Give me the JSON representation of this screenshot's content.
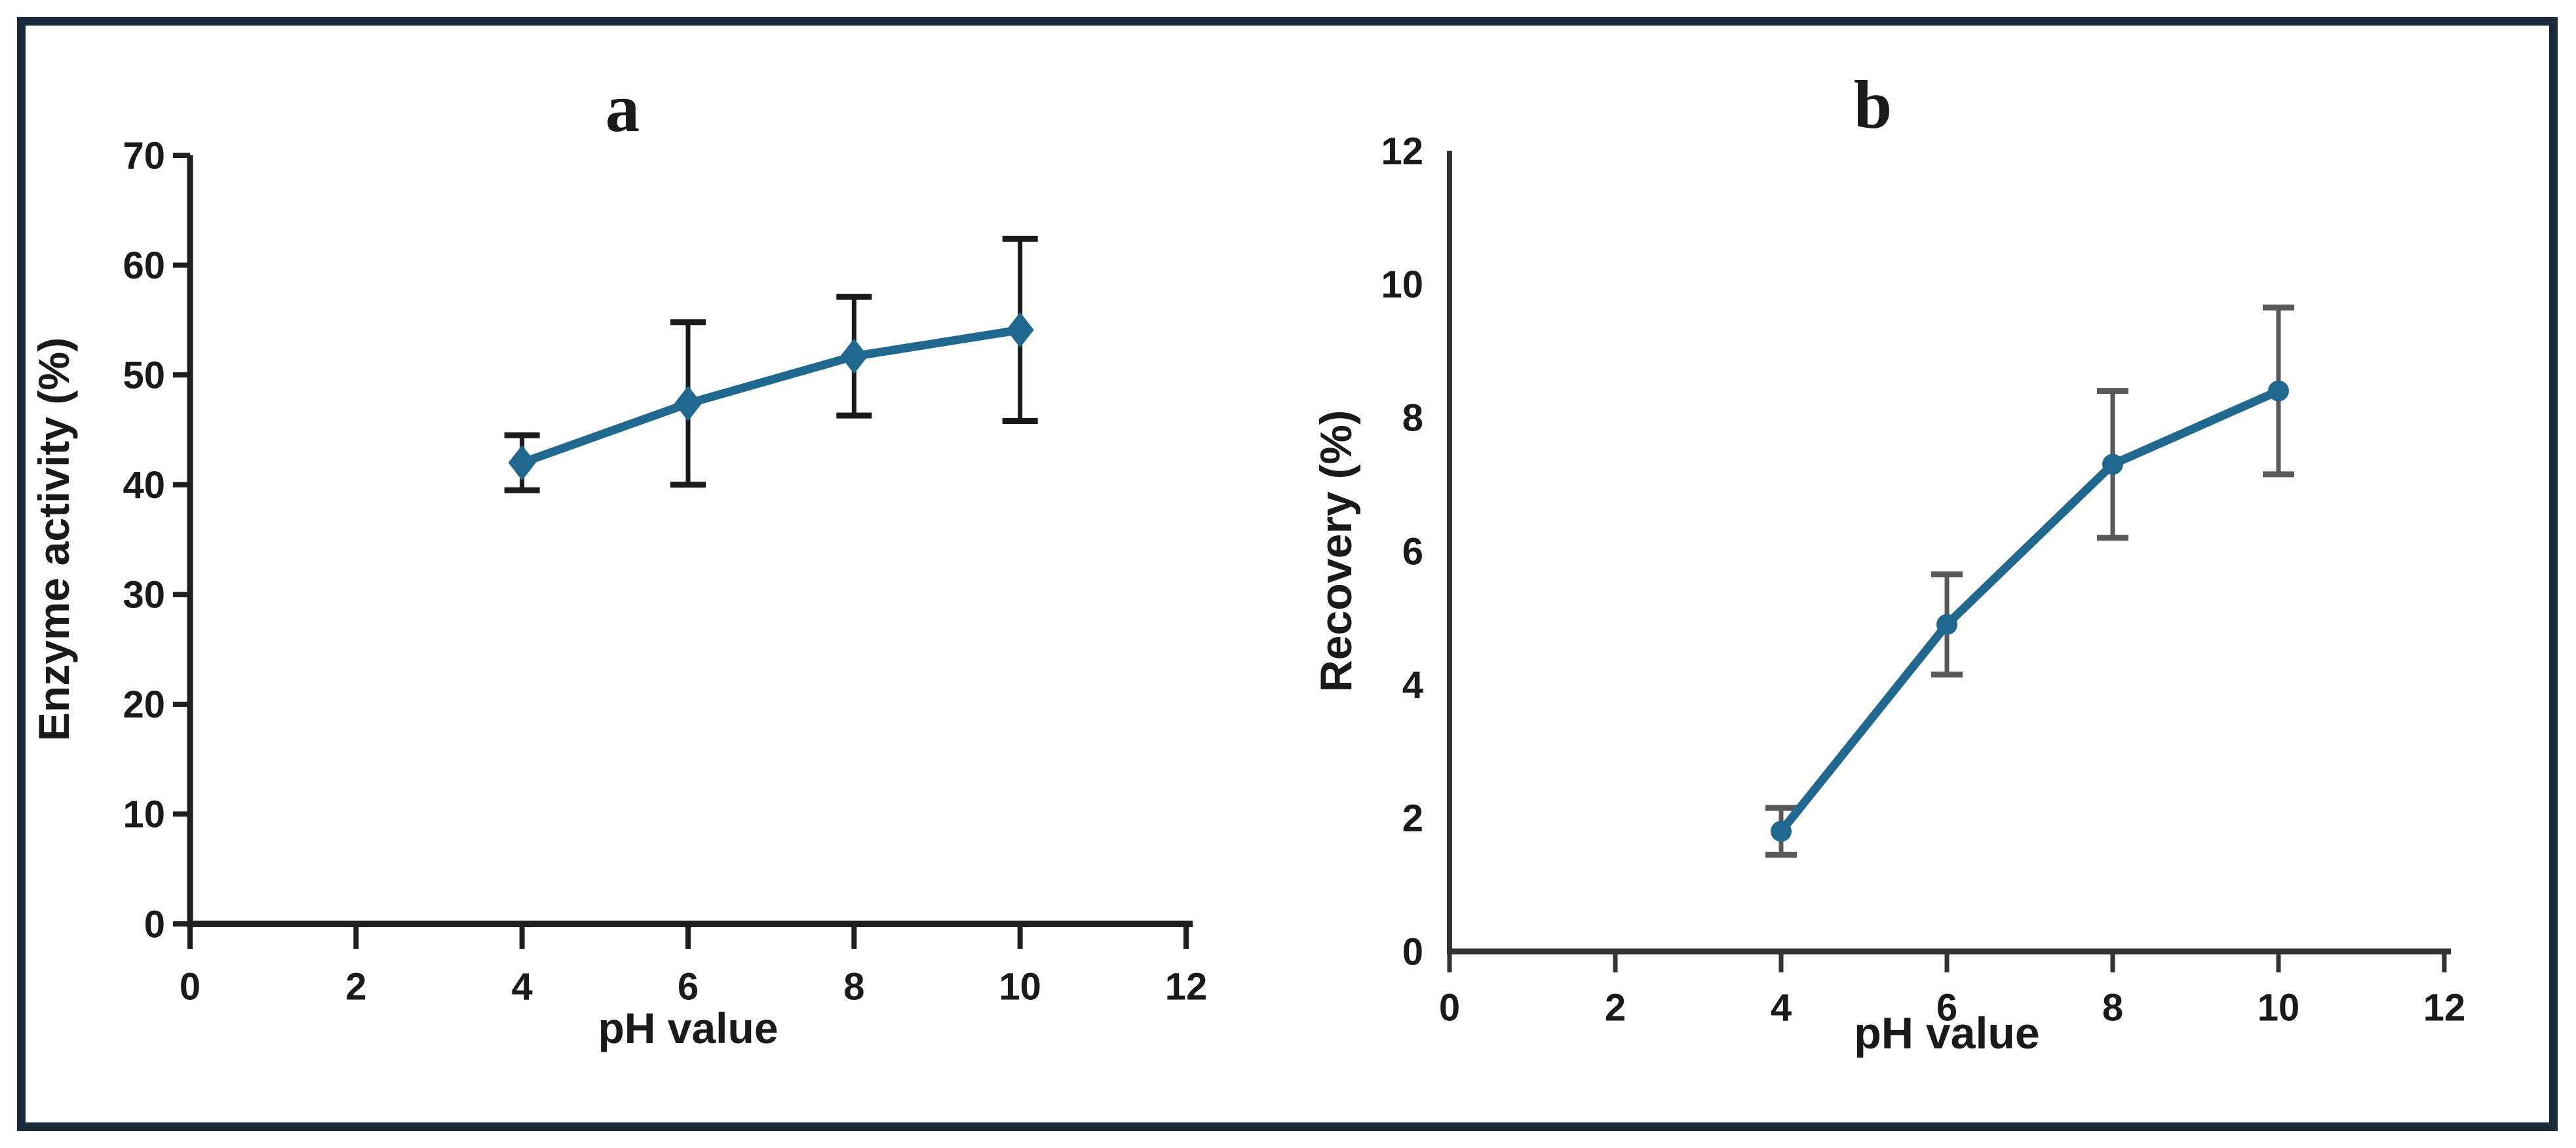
{
  "figure": {
    "background": "#ffffff",
    "border_color": "#1b2b3e"
  },
  "chart_data": [
    {
      "id": "a",
      "type": "line",
      "title": "a",
      "xlabel": "pH value",
      "ylabel": "Enzyme activity (%)",
      "xlim": [
        0,
        12
      ],
      "ylim": [
        0,
        70
      ],
      "xticks": [
        0,
        2,
        4,
        6,
        8,
        10,
        12
      ],
      "yticks": [
        0,
        10,
        20,
        30,
        40,
        50,
        60,
        70
      ],
      "x": [
        4,
        6,
        8,
        10
      ],
      "values": [
        42,
        47.4,
        51.7,
        54.1
      ],
      "errors": [
        2.5,
        7.4,
        5.4,
        8.3
      ],
      "marker": "diamond",
      "line_color": "#21688F",
      "error_color": "#1a1a1a",
      "grid": false,
      "legend": "none"
    },
    {
      "id": "b",
      "type": "line",
      "title": "b",
      "xlabel": "pH value",
      "ylabel": "Recovery (%)",
      "xlim": [
        0,
        12
      ],
      "ylim": [
        0,
        12
      ],
      "xticks": [
        0,
        2,
        4,
        6,
        8,
        10,
        12
      ],
      "yticks": [
        0,
        2,
        4,
        6,
        8,
        10,
        12
      ],
      "x": [
        4,
        6,
        8,
        10
      ],
      "values": [
        1.8,
        4.9,
        7.3,
        8.4
      ],
      "errors": [
        0.35,
        0.75,
        1.1,
        1.25
      ],
      "marker": "circle",
      "line_color": "#21688F",
      "error_color": "#595959",
      "grid": false,
      "legend": "none"
    }
  ]
}
